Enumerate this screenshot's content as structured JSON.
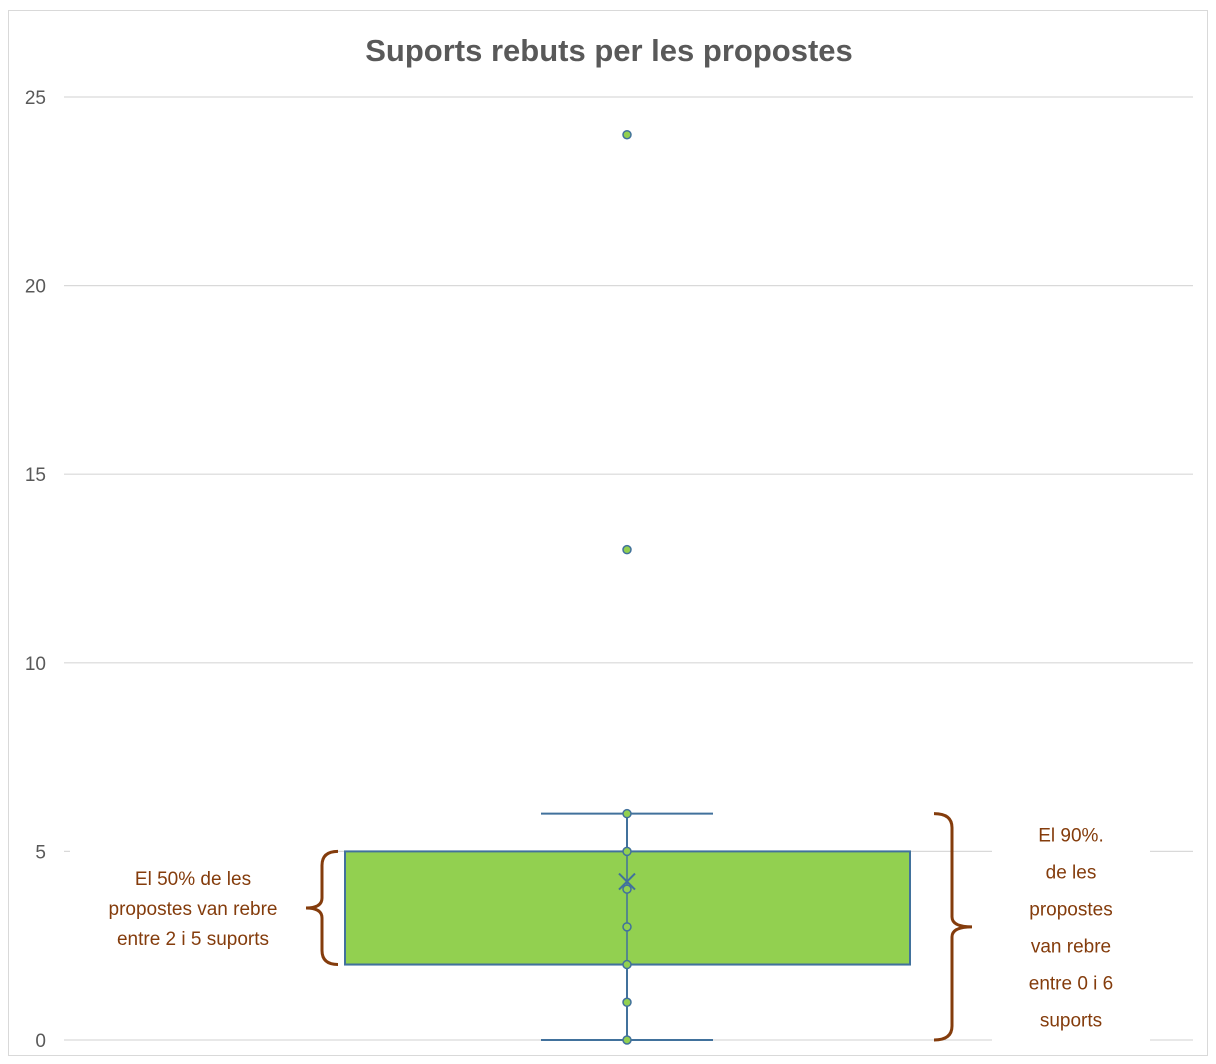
{
  "chart_data": {
    "type": "box",
    "title": "Suports rebuts per les propostes",
    "xlabel": "",
    "ylabel": "",
    "ylim": [
      0,
      25
    ],
    "yticks": [
      0,
      5,
      10,
      15,
      20,
      25
    ],
    "grid": true,
    "legend": "none",
    "box": {
      "min": 0,
      "q1": 2,
      "median": 2,
      "q3": 5,
      "max": 6,
      "mean": 4.2
    },
    "points": [
      0,
      1,
      2,
      3,
      4,
      5,
      6,
      13,
      24
    ],
    "annotations": [
      {
        "lines": [
          "El 50% de les",
          "propostes van rebre",
          "entre 2 i 5 suports"
        ],
        "range": [
          2,
          5
        ],
        "side": "left"
      },
      {
        "lines": [
          "El 90%.",
          "de les",
          "propostes",
          "van rebre",
          "entre 0 i 6",
          "suports"
        ],
        "range": [
          0,
          6
        ],
        "side": "right"
      }
    ],
    "colors": {
      "box_fill": "#92d050",
      "box_stroke": "#41719c",
      "point_fill": "#92d050",
      "point_stroke": "#41719c",
      "bracket": "#843c0c",
      "annotation_text": "#843c0c",
      "grid": "#d9d9d9",
      "text": "#595959"
    }
  }
}
